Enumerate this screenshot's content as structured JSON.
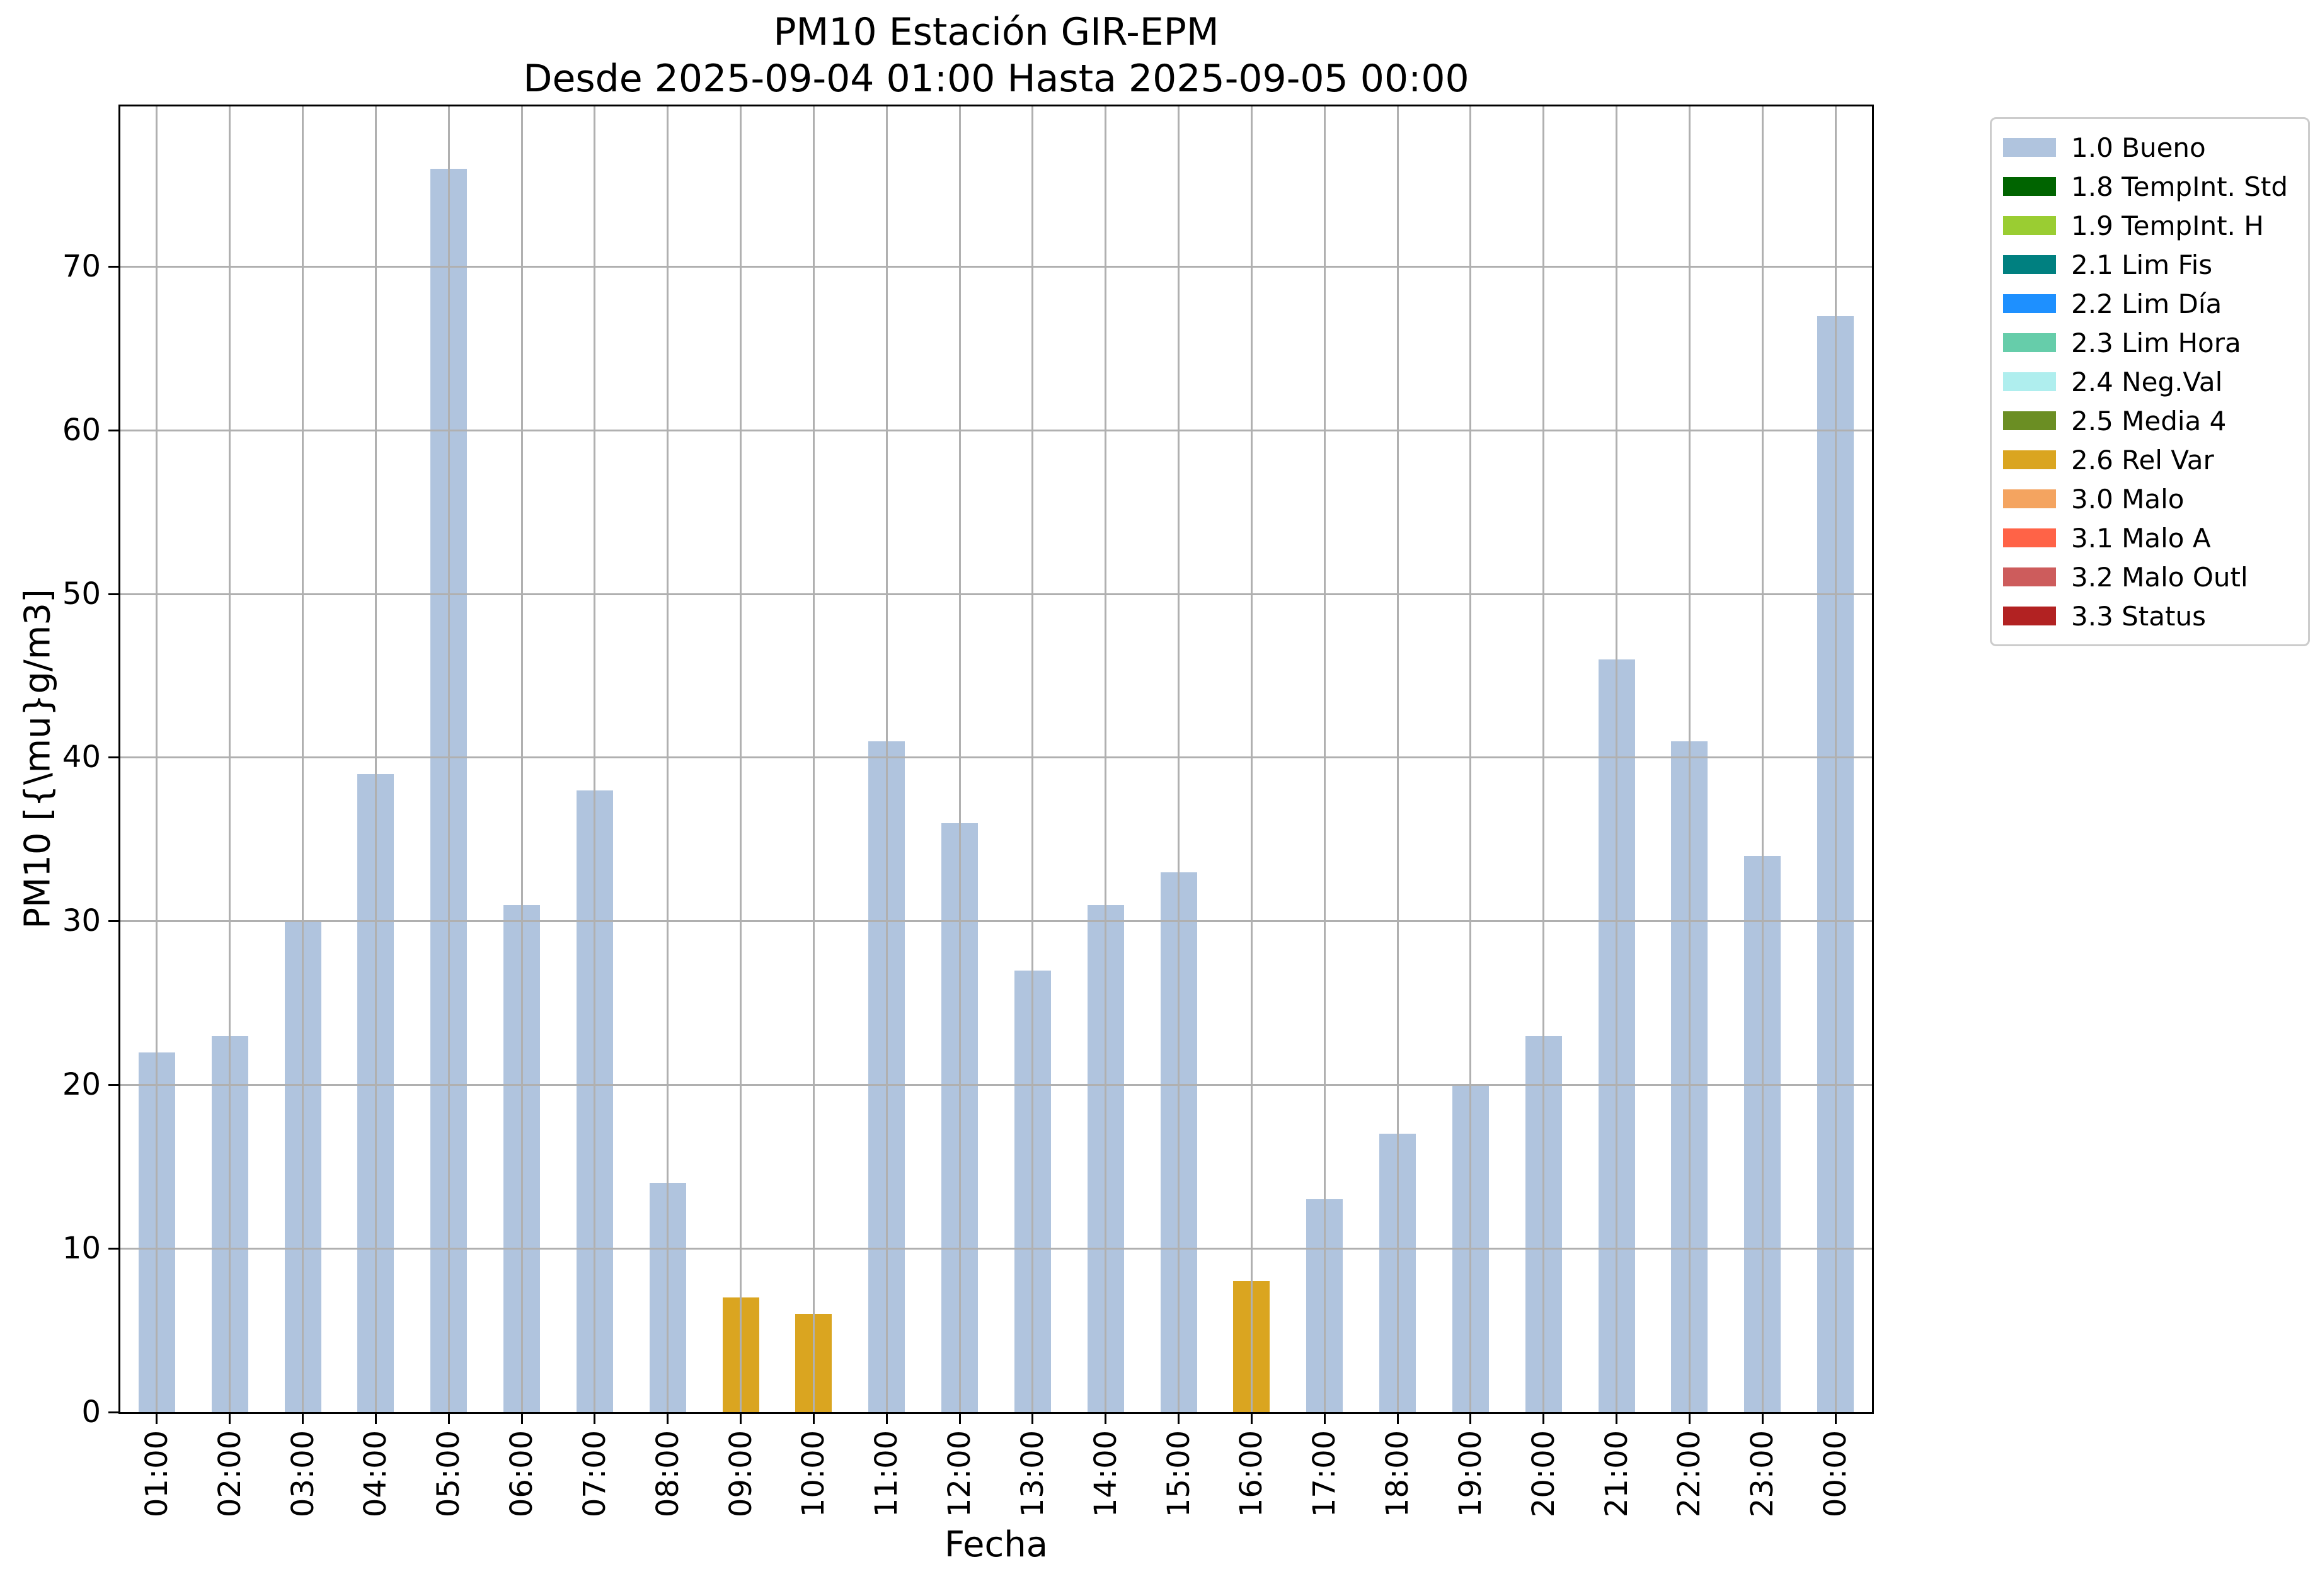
{
  "chart_data": {
    "type": "bar",
    "title": "PM10 Estación GIR-EPM",
    "subtitle": "Desde 2025-09-04 01:00 Hasta 2025-09-05 00:00",
    "xlabel": "Fecha",
    "ylabel": "PM10 [{\\mu}g/m3]",
    "categories": [
      "01:00",
      "02:00",
      "03:00",
      "04:00",
      "05:00",
      "06:00",
      "07:00",
      "08:00",
      "09:00",
      "10:00",
      "11:00",
      "12:00",
      "13:00",
      "14:00",
      "15:00",
      "16:00",
      "17:00",
      "18:00",
      "19:00",
      "20:00",
      "21:00",
      "22:00",
      "23:00",
      "00:00"
    ],
    "values": [
      22,
      23,
      30,
      39,
      76,
      31,
      38,
      14,
      7,
      6,
      41,
      36,
      27,
      31,
      33,
      8,
      13,
      17,
      20,
      23,
      46,
      41,
      34,
      67
    ],
    "bar_status": [
      "1.0 Bueno",
      "1.0 Bueno",
      "1.0 Bueno",
      "1.0 Bueno",
      "1.0 Bueno",
      "1.0 Bueno",
      "1.0 Bueno",
      "1.0 Bueno",
      "2.6 Rel Var",
      "2.6 Rel Var",
      "1.0 Bueno",
      "1.0 Bueno",
      "1.0 Bueno",
      "1.0 Bueno",
      "1.0 Bueno",
      "2.6 Rel Var",
      "1.0 Bueno",
      "1.0 Bueno",
      "1.0 Bueno",
      "1.0 Bueno",
      "1.0 Bueno",
      "1.0 Bueno",
      "1.0 Bueno",
      "1.0 Bueno"
    ],
    "yticks": [
      0,
      10,
      20,
      30,
      40,
      50,
      60,
      70
    ],
    "ylim": [
      0,
      79.8
    ],
    "grid": true,
    "legend_position": "upper right outside",
    "legend": [
      {
        "label": "1.0 Bueno",
        "color": "#b0c4de"
      },
      {
        "label": "1.8 TempInt. Std",
        "color": "#006400"
      },
      {
        "label": "1.9 TempInt. H",
        "color": "#9acd32"
      },
      {
        "label": "2.1 Lim Fis",
        "color": "#008080"
      },
      {
        "label": "2.2 Lim Día",
        "color": "#1e90ff"
      },
      {
        "label": "2.3 Lim Hora",
        "color": "#66cdaa"
      },
      {
        "label": "2.4 Neg.Val",
        "color": "#afeeee"
      },
      {
        "label": "2.5 Media 4",
        "color": "#6b8e23"
      },
      {
        "label": "2.6 Rel Var",
        "color": "#daa520"
      },
      {
        "label": "3.0 Malo",
        "color": "#f4a460"
      },
      {
        "label": "3.1 Malo A",
        "color": "#ff6347"
      },
      {
        "label": "3.2 Malo Outl",
        "color": "#cd5c5c"
      },
      {
        "label": "3.3 Status",
        "color": "#b22222"
      }
    ],
    "colors": {
      "grid": "#b0b0b0",
      "spine": "#000000",
      "background": "#ffffff"
    }
  }
}
